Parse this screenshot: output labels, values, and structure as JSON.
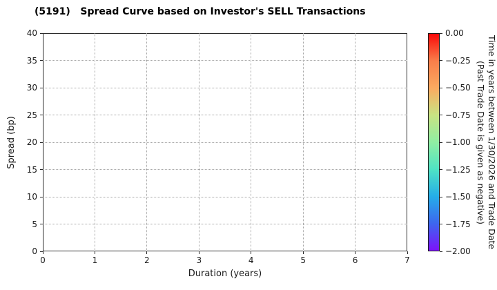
{
  "chart_data": {
    "type": "scatter",
    "title": "(5191)   Spread Curve based on Investor's SELL Transactions",
    "xlabel": "Duration (years)",
    "ylabel": "Spread (bp)",
    "xlim": [
      0,
      7
    ],
    "ylim": [
      0,
      40
    ],
    "xticks": [
      0,
      1,
      2,
      3,
      4,
      5,
      6,
      7
    ],
    "yticks": [
      0,
      5,
      10,
      15,
      20,
      25,
      30,
      35,
      40
    ],
    "grid": true,
    "grid_style": "dotted",
    "points": [],
    "colorbar": {
      "label": "Time in years between 1/30/2026 and Trade Date\n(Past Trade Date is given as negative)",
      "tick_labels": [
        "0.00",
        "−0.25",
        "−0.50",
        "−0.75",
        "−1.00",
        "−1.25",
        "−1.50",
        "−1.75",
        "−2.00"
      ],
      "vmax": 0.0,
      "vmin": -2.0,
      "colormap": "rainbow",
      "gradient_stops": [
        "#fa0a0a",
        "#f97e4a",
        "#fbaa60",
        "#c8e383",
        "#90efa3",
        "#4fe3c4",
        "#25ade8",
        "#3d66ef",
        "#7d12fa"
      ]
    }
  }
}
